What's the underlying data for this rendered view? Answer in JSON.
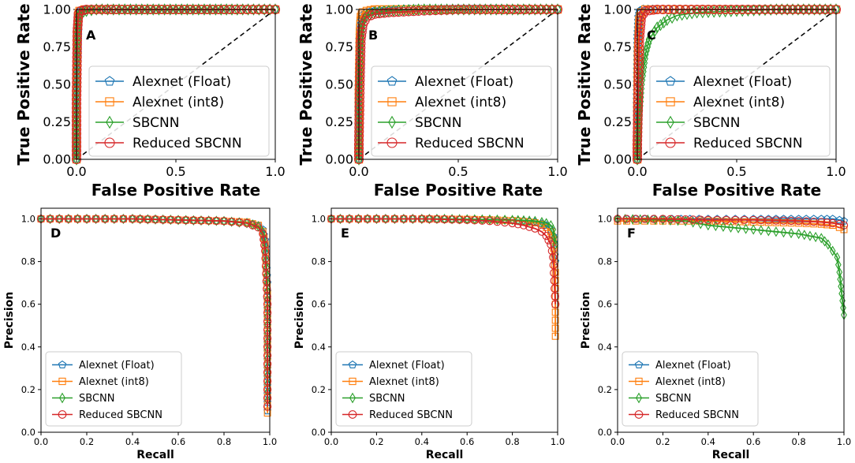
{
  "colors": {
    "alexnet_float": "#1f77b4",
    "alexnet_int8": "#ff7f0e",
    "sbcnn": "#2ca02c",
    "reduced_sbcnn": "#d62728"
  },
  "legend_entries": [
    {
      "name": "Alexnet (Float)",
      "marker": "pentagon"
    },
    {
      "name": "Alexnet (int8)",
      "marker": "square"
    },
    {
      "name": "SBCNN",
      "marker": "diamond"
    },
    {
      "name": "Reduced SBCNN",
      "marker": "circle"
    }
  ],
  "chart_data": [
    {
      "panel": "A",
      "type": "line",
      "kind": "roc",
      "xlabel": "False Positive Rate",
      "ylabel": "True Positive Rate",
      "xlim": [
        0,
        1
      ],
      "ylim": [
        0,
        1
      ],
      "xticks": [
        "0.0",
        "0.5",
        "1.0"
      ],
      "yticks": [
        "0.00",
        "0.25",
        "0.50",
        "0.75",
        "1.00"
      ],
      "legend_position": "center-right",
      "baseline": [
        [
          0,
          0
        ],
        [
          1,
          1
        ]
      ],
      "series": [
        {
          "name": "Alexnet (Float)",
          "x": [
            0,
            0,
            0.005,
            0.01,
            0.02,
            0.05,
            0.2,
            0.4,
            0.6,
            0.8,
            1.0
          ],
          "y": [
            0,
            0.3,
            0.8,
            0.97,
            0.99,
            1.0,
            1.0,
            1.0,
            1.0,
            1.0,
            1.0
          ]
        },
        {
          "name": "Alexnet (int8)",
          "x": [
            0,
            0,
            0.003,
            0.008,
            0.015,
            0.04,
            0.2,
            0.4,
            0.6,
            0.8,
            1.0
          ],
          "y": [
            0,
            0.25,
            0.75,
            0.96,
            0.99,
            1.0,
            1.0,
            1.0,
            1.0,
            1.0,
            1.0
          ]
        },
        {
          "name": "SBCNN",
          "x": [
            0,
            0,
            0.005,
            0.01,
            0.02,
            0.05,
            0.1,
            0.3,
            0.5,
            0.7,
            1.0
          ],
          "y": [
            0,
            0.35,
            0.85,
            0.95,
            0.98,
            0.99,
            1.0,
            1.0,
            1.0,
            1.0,
            1.0
          ]
        },
        {
          "name": "Reduced SBCNN",
          "x": [
            0,
            0,
            0.004,
            0.01,
            0.02,
            0.05,
            0.2,
            0.4,
            0.6,
            0.8,
            1.0
          ],
          "y": [
            0,
            0.4,
            0.85,
            0.97,
            0.99,
            1.0,
            1.0,
            1.0,
            1.0,
            1.0,
            1.0
          ]
        }
      ]
    },
    {
      "panel": "B",
      "type": "line",
      "kind": "roc",
      "xlabel": "False Positive Rate",
      "ylabel": "True Positive Rate",
      "xlim": [
        0,
        1
      ],
      "ylim": [
        0,
        1
      ],
      "xticks": [
        "0.0",
        "0.5",
        "1.0"
      ],
      "yticks": [
        "0.00",
        "0.25",
        "0.50",
        "0.75",
        "1.00"
      ],
      "legend_position": "center-right",
      "baseline": [
        [
          0,
          0
        ],
        [
          1,
          1
        ]
      ],
      "series": [
        {
          "name": "Alexnet (Float)",
          "x": [
            0,
            0,
            0.005,
            0.01,
            0.02,
            0.04,
            0.08,
            0.2,
            0.4,
            0.6,
            0.8,
            1.0
          ],
          "y": [
            0,
            0.4,
            0.8,
            0.92,
            0.96,
            0.98,
            0.99,
            1.0,
            1.0,
            1.0,
            1.0,
            1.0
          ]
        },
        {
          "name": "Alexnet (int8)",
          "x": [
            0,
            0,
            0.005,
            0.01,
            0.02,
            0.04,
            0.08,
            0.2,
            0.4,
            0.6,
            0.8,
            1.0
          ],
          "y": [
            0,
            0.45,
            0.85,
            0.95,
            0.98,
            0.99,
            1.0,
            1.0,
            1.0,
            1.0,
            1.0,
            1.0
          ]
        },
        {
          "name": "SBCNN",
          "x": [
            0,
            0,
            0.005,
            0.01,
            0.02,
            0.04,
            0.08,
            0.15,
            0.3,
            0.5,
            0.8,
            1.0
          ],
          "y": [
            0,
            0.35,
            0.7,
            0.85,
            0.92,
            0.96,
            0.98,
            0.99,
            1.0,
            1.0,
            1.0,
            1.0
          ]
        },
        {
          "name": "Reduced SBCNN",
          "x": [
            0,
            0,
            0.005,
            0.01,
            0.02,
            0.04,
            0.08,
            0.15,
            0.3,
            0.5,
            0.7,
            1.0
          ],
          "y": [
            0,
            0.1,
            0.5,
            0.8,
            0.9,
            0.95,
            0.97,
            0.98,
            0.99,
            1.0,
            1.0,
            1.0
          ]
        }
      ]
    },
    {
      "panel": "C",
      "type": "line",
      "kind": "roc",
      "xlabel": "False Positive Rate",
      "ylabel": "True Positive Rate",
      "xlim": [
        0,
        1
      ],
      "ylim": [
        0,
        1
      ],
      "xticks": [
        "0.0",
        "0.5",
        "1.0"
      ],
      "yticks": [
        "0.00",
        "0.25",
        "0.50",
        "0.75",
        "1.00"
      ],
      "legend_position": "center-right",
      "baseline": [
        [
          0,
          0
        ],
        [
          1,
          1
        ]
      ],
      "series": [
        {
          "name": "Alexnet (Float)",
          "x": [
            0,
            0,
            0.003,
            0.008,
            0.015,
            0.03,
            0.1,
            0.3,
            0.5,
            0.7,
            1.0
          ],
          "y": [
            0,
            0.4,
            0.8,
            0.95,
            0.99,
            1.0,
            1.0,
            1.0,
            1.0,
            1.0,
            1.0
          ]
        },
        {
          "name": "Alexnet (int8)",
          "x": [
            0,
            0,
            0.004,
            0.01,
            0.02,
            0.04,
            0.12,
            0.3,
            0.5,
            0.7,
            1.0
          ],
          "y": [
            0,
            0.35,
            0.75,
            0.93,
            0.98,
            1.0,
            1.0,
            1.0,
            1.0,
            1.0,
            1.0
          ]
        },
        {
          "name": "SBCNN",
          "x": [
            0,
            0.005,
            0.01,
            0.02,
            0.04,
            0.06,
            0.1,
            0.15,
            0.2,
            0.3,
            0.5,
            0.7,
            1.0
          ],
          "y": [
            0,
            0.1,
            0.3,
            0.5,
            0.7,
            0.8,
            0.88,
            0.93,
            0.96,
            0.98,
            0.99,
            1.0,
            1.0
          ]
        },
        {
          "name": "Reduced SBCNN",
          "x": [
            0,
            0,
            0.005,
            0.01,
            0.02,
            0.04,
            0.1,
            0.3,
            0.5,
            0.7,
            1.0
          ],
          "y": [
            0,
            0.1,
            0.4,
            0.8,
            0.95,
            0.99,
            1.0,
            1.0,
            1.0,
            1.0,
            1.0
          ]
        }
      ]
    },
    {
      "panel": "D",
      "type": "line",
      "kind": "pr",
      "xlabel": "Recall",
      "ylabel": "Precision",
      "xlim": [
        0,
        1
      ],
      "ylim": [
        0,
        1.05
      ],
      "xticks": [
        "0.0",
        "0.2",
        "0.4",
        "0.6",
        "0.8",
        "1.0"
      ],
      "yticks": [
        "0.0",
        "0.2",
        "0.4",
        "0.6",
        "0.8",
        "1.0"
      ],
      "legend_position": "lower-left",
      "series": [
        {
          "name": "Alexnet (Float)",
          "x": [
            0,
            0.2,
            0.4,
            0.6,
            0.8,
            0.9,
            0.95,
            0.97,
            0.98,
            0.99,
            0.99
          ],
          "y": [
            1.0,
            1.0,
            1.0,
            0.995,
            0.99,
            0.985,
            0.97,
            0.95,
            0.9,
            0.7,
            0.1
          ]
        },
        {
          "name": "Alexnet (int8)",
          "x": [
            0,
            0.2,
            0.4,
            0.6,
            0.8,
            0.9,
            0.95,
            0.97,
            0.98,
            0.99,
            0.99
          ],
          "y": [
            1.0,
            1.0,
            1.0,
            0.995,
            0.99,
            0.985,
            0.97,
            0.94,
            0.88,
            0.65,
            0.09
          ]
        },
        {
          "name": "SBCNN",
          "x": [
            0,
            0.2,
            0.4,
            0.6,
            0.8,
            0.9,
            0.95,
            0.97,
            0.98,
            0.99,
            0.99
          ],
          "y": [
            1.0,
            1.0,
            1.0,
            0.995,
            0.99,
            0.98,
            0.965,
            0.94,
            0.88,
            0.7,
            0.15
          ]
        },
        {
          "name": "Reduced SBCNN",
          "x": [
            0,
            0.2,
            0.4,
            0.6,
            0.8,
            0.9,
            0.95,
            0.97,
            0.98,
            0.99,
            0.99
          ],
          "y": [
            1.0,
            1.0,
            1.0,
            0.995,
            0.99,
            0.98,
            0.96,
            0.93,
            0.85,
            0.6,
            0.12
          ]
        }
      ]
    },
    {
      "panel": "E",
      "type": "line",
      "kind": "pr",
      "xlabel": "Recall",
      "ylabel": "Precision",
      "xlim": [
        0,
        1
      ],
      "ylim": [
        0,
        1.05
      ],
      "xticks": [
        "0.0",
        "0.2",
        "0.4",
        "0.6",
        "0.8",
        "1.0"
      ],
      "yticks": [
        "0.0",
        "0.2",
        "0.4",
        "0.6",
        "0.8",
        "1.0"
      ],
      "legend_position": "lower-left",
      "series": [
        {
          "name": "Alexnet (Float)",
          "x": [
            0,
            0.2,
            0.4,
            0.5,
            0.6,
            0.7,
            0.8,
            0.85,
            0.9,
            0.93,
            0.95,
            0.97,
            0.98,
            0.99
          ],
          "y": [
            1.0,
            1.0,
            1.0,
            0.999,
            0.998,
            0.996,
            0.992,
            0.99,
            0.985,
            0.978,
            0.97,
            0.95,
            0.92,
            0.8
          ]
        },
        {
          "name": "Alexnet (int8)",
          "x": [
            0,
            0.2,
            0.4,
            0.5,
            0.6,
            0.7,
            0.8,
            0.85,
            0.9,
            0.93,
            0.95,
            0.97,
            0.98,
            0.99,
            0.99
          ],
          "y": [
            1.0,
            1.0,
            1.0,
            0.999,
            0.998,
            0.996,
            0.992,
            0.988,
            0.982,
            0.975,
            0.96,
            0.94,
            0.9,
            0.75,
            0.45
          ]
        },
        {
          "name": "SBCNN",
          "x": [
            0,
            0.2,
            0.4,
            0.5,
            0.6,
            0.7,
            0.8,
            0.85,
            0.9,
            0.93,
            0.95,
            0.97,
            0.98,
            0.99
          ],
          "y": [
            1.0,
            1.0,
            1.0,
            1.0,
            0.998,
            0.997,
            0.995,
            0.993,
            0.99,
            0.985,
            0.98,
            0.97,
            0.95,
            0.88
          ]
        },
        {
          "name": "Reduced SBCNN",
          "x": [
            0,
            0.2,
            0.4,
            0.5,
            0.6,
            0.7,
            0.8,
            0.85,
            0.9,
            0.93,
            0.95,
            0.97,
            0.98,
            0.99
          ],
          "y": [
            1.0,
            1.0,
            1.0,
            0.998,
            0.995,
            0.99,
            0.98,
            0.97,
            0.955,
            0.94,
            0.92,
            0.88,
            0.82,
            0.6
          ]
        }
      ]
    },
    {
      "panel": "F",
      "type": "line",
      "kind": "pr",
      "xlabel": "Recall",
      "ylabel": "Precision",
      "xlim": [
        0,
        1
      ],
      "ylim": [
        0,
        1.05
      ],
      "xticks": [
        "0.0",
        "0.2",
        "0.4",
        "0.6",
        "0.8",
        "1.0"
      ],
      "yticks": [
        "0.0",
        "0.2",
        "0.4",
        "0.6",
        "0.8",
        "1.0"
      ],
      "legend_position": "lower-left",
      "series": [
        {
          "name": "Alexnet (Float)",
          "x": [
            0,
            0.2,
            0.4,
            0.6,
            0.8,
            0.9,
            0.95,
            0.98,
            1.0
          ],
          "y": [
            1.0,
            1.0,
            1.0,
            1.0,
            1.0,
            1.0,
            1.0,
            0.995,
            0.99
          ]
        },
        {
          "name": "Alexnet (int8)",
          "x": [
            0,
            0.2,
            0.4,
            0.6,
            0.8,
            0.9,
            0.95,
            0.98,
            1.0
          ],
          "y": [
            0.99,
            0.99,
            0.99,
            0.985,
            0.98,
            0.975,
            0.97,
            0.96,
            0.95
          ]
        },
        {
          "name": "SBCNN",
          "x": [
            0,
            0.2,
            0.3,
            0.4,
            0.5,
            0.6,
            0.7,
            0.8,
            0.85,
            0.9,
            0.93,
            0.95,
            0.97,
            0.98,
            0.99,
            1.0
          ],
          "y": [
            1.0,
            0.995,
            0.99,
            0.97,
            0.96,
            0.95,
            0.94,
            0.93,
            0.92,
            0.91,
            0.88,
            0.85,
            0.82,
            0.75,
            0.65,
            0.55
          ]
        },
        {
          "name": "Reduced SBCNN",
          "x": [
            0,
            0.2,
            0.4,
            0.6,
            0.8,
            0.9,
            0.95,
            0.98,
            1.0
          ],
          "y": [
            1.0,
            1.0,
            0.995,
            0.995,
            0.99,
            0.985,
            0.98,
            0.975,
            0.97
          ]
        }
      ]
    }
  ]
}
